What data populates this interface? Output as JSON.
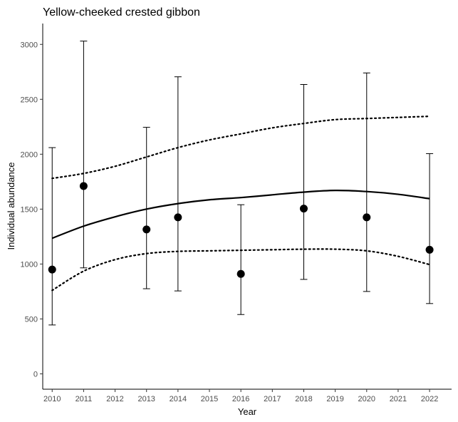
{
  "chart_data": {
    "type": "scatter",
    "title": "Yellow-cheeked crested gibbon",
    "xlabel": "Year",
    "ylabel": "Individual abundance",
    "xlim": [
      2009.7,
      2022.7
    ],
    "ylim": [
      -140,
      3190
    ],
    "x_ticks": [
      2010,
      2011,
      2012,
      2013,
      2014,
      2015,
      2016,
      2017,
      2018,
      2019,
      2020,
      2021,
      2022
    ],
    "y_ticks": [
      0,
      500,
      1000,
      1500,
      2000,
      2500,
      3000
    ],
    "grid": false,
    "legend": "none",
    "points": [
      {
        "x": 2010,
        "y": 950,
        "lower": 445,
        "upper": 2060
      },
      {
        "x": 2011,
        "y": 1710,
        "lower": 965,
        "upper": 3030
      },
      {
        "x": 2013,
        "y": 1315,
        "lower": 775,
        "upper": 2245
      },
      {
        "x": 2014,
        "y": 1425,
        "lower": 755,
        "upper": 2705
      },
      {
        "x": 2016,
        "y": 910,
        "lower": 540,
        "upper": 1540
      },
      {
        "x": 2018,
        "y": 1505,
        "lower": 860,
        "upper": 2635
      },
      {
        "x": 2020,
        "y": 1425,
        "lower": 750,
        "upper": 2740
      },
      {
        "x": 2022,
        "y": 1130,
        "lower": 640,
        "upper": 2005
      }
    ],
    "trend": {
      "x": [
        2010,
        2011,
        2012,
        2013,
        2014,
        2015,
        2016,
        2017,
        2018,
        2019,
        2020,
        2021,
        2022
      ],
      "mean": [
        1235,
        1345,
        1430,
        1500,
        1550,
        1585,
        1605,
        1630,
        1655,
        1670,
        1660,
        1635,
        1595
      ],
      "lower": [
        760,
        935,
        1040,
        1095,
        1115,
        1120,
        1125,
        1130,
        1135,
        1135,
        1120,
        1070,
        995
      ],
      "upper": [
        1780,
        1825,
        1890,
        1975,
        2060,
        2130,
        2185,
        2240,
        2280,
        2315,
        2325,
        2335,
        2345
      ]
    },
    "colors": {
      "marks": "#000000",
      "axis": "#000000",
      "tick_text": "#4d4d4d"
    }
  }
}
